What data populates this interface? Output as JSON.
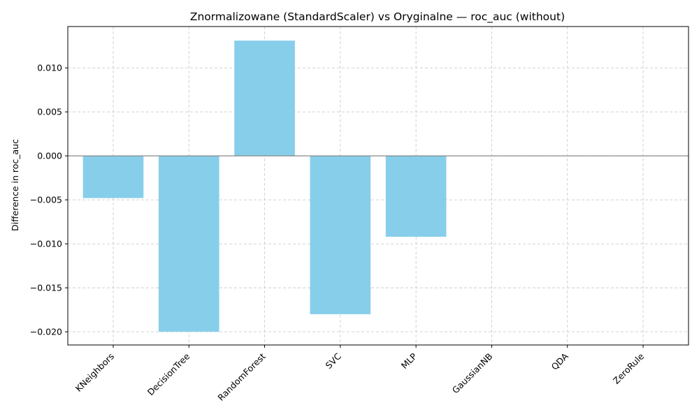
{
  "chart_data": {
    "type": "bar",
    "title": "Znormalizowane (StandardScaler) vs Oryginalne — roc_auc (without)",
    "xlabel": "",
    "ylabel": "Difference in roc_auc",
    "categories": [
      "KNeighbors",
      "DecisionTree",
      "RandomForest",
      "SVC",
      "MLP",
      "GaussianNB",
      "QDA",
      "ZeroRule"
    ],
    "values": [
      -0.0048,
      -0.02,
      0.0131,
      -0.018,
      -0.0092,
      0.0,
      0.0,
      0.0
    ],
    "ylim": [
      -0.0215,
      0.0147
    ],
    "yticks": [
      -0.02,
      -0.015,
      -0.01,
      -0.005,
      0.0,
      0.005,
      0.01
    ],
    "ytick_labels": [
      "−0.020",
      "−0.015",
      "−0.010",
      "−0.005",
      "0.000",
      "0.005",
      "0.010"
    ],
    "grid": true,
    "zero_line": true,
    "colors": {
      "bar": "#87ceeb",
      "grid": "#cccccc",
      "axis": "#000000",
      "zero_line": "#808080"
    }
  }
}
